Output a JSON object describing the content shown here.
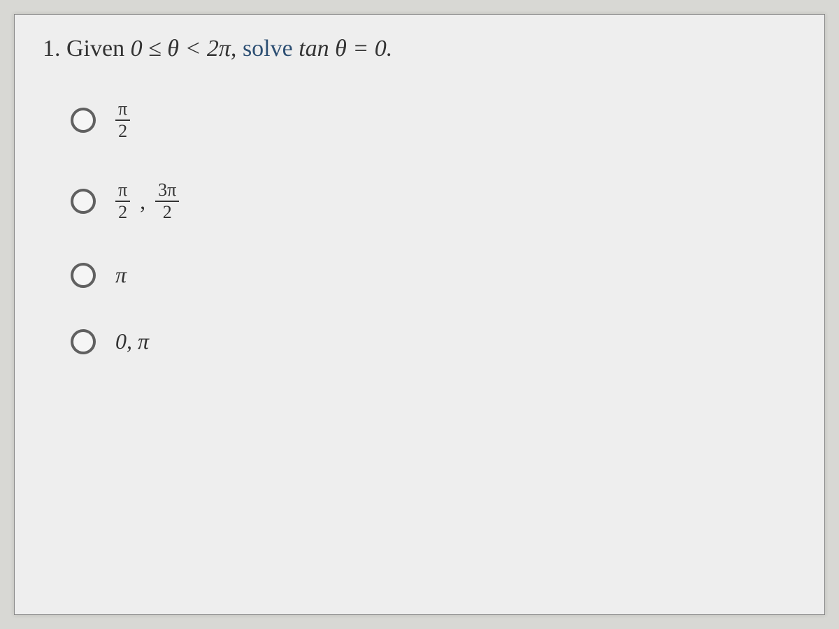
{
  "question": {
    "number": "1.",
    "given_prefix": "Given",
    "inequality": "0 ≤ θ < 2π,",
    "solve_word": "solve",
    "equation": "tan θ = 0."
  },
  "options": [
    {
      "id": "opt-a",
      "type": "fraction-list",
      "items": [
        {
          "num": "π",
          "den": "2"
        }
      ]
    },
    {
      "id": "opt-b",
      "type": "fraction-list",
      "items": [
        {
          "num": "π",
          "den": "2"
        },
        {
          "num": "3π",
          "den": "2"
        }
      ]
    },
    {
      "id": "opt-c",
      "type": "plain",
      "text": "π"
    },
    {
      "id": "opt-d",
      "type": "plain",
      "text": "0, π"
    }
  ],
  "styling": {
    "background_outer": "#d8d8d4",
    "background_inner": "#eeeeee",
    "text_color": "#333333",
    "accent_color": "#2d4f73",
    "radio_border": "#606060",
    "question_fontsize": 34,
    "option_fontsize": 32,
    "frac_fontsize": 26,
    "radio_diameter": 36,
    "radio_border_width": 4,
    "option_gap": 58
  }
}
